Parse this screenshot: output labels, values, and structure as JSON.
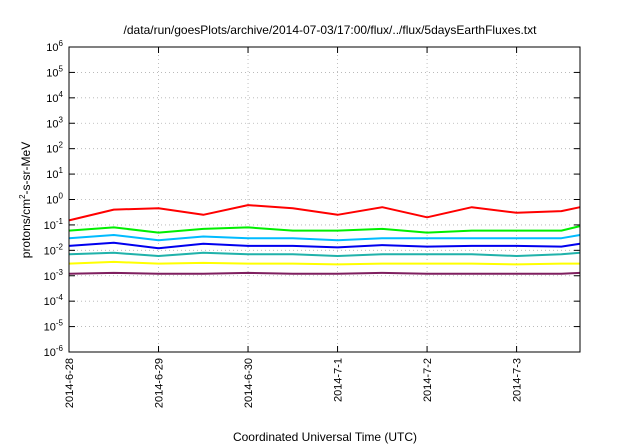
{
  "chart_data": {
    "type": "line",
    "title": "/data/run/goesPlots/archive/2014-07-03/17:00/flux/../flux/5daysEarthFluxes.txt",
    "xlabel": "Coordinated Universal Time (UTC)",
    "ylabel": {
      "base": "protons/cm",
      "sup": "2",
      "rest": "-s-sr-MeV"
    },
    "y_scale": "log",
    "ylim": [
      1e-06,
      1000000.0
    ],
    "y_ticks": [
      {
        "base": "10",
        "exp": "6"
      },
      {
        "base": "10",
        "exp": "5"
      },
      {
        "base": "10",
        "exp": "4"
      },
      {
        "base": "10",
        "exp": "3"
      },
      {
        "base": "10",
        "exp": "2"
      },
      {
        "base": "10",
        "exp": "1"
      },
      {
        "base": "10",
        "exp": "0"
      },
      {
        "base": "10",
        "exp": "-1"
      },
      {
        "base": "10",
        "exp": "-2"
      },
      {
        "base": "10",
        "exp": "-3"
      },
      {
        "base": "10",
        "exp": "-4"
      },
      {
        "base": "10",
        "exp": "-5"
      },
      {
        "base": "10",
        "exp": "-6"
      }
    ],
    "x_ticks": [
      "2014-6-28",
      "2014-6-29",
      "2014-6-30",
      "2014-7-1",
      "2014-7-2",
      "2014-7-3"
    ],
    "xlim": [
      "2014-06-28 00:00",
      "2014-07-03 17:00"
    ],
    "grid": true,
    "x": [
      "2014-06-28 00:00",
      "2014-06-28 12:00",
      "2014-06-29 00:00",
      "2014-06-29 12:00",
      "2014-06-30 00:00",
      "2014-06-30 12:00",
      "2014-07-01 00:00",
      "2014-07-01 12:00",
      "2014-07-02 00:00",
      "2014-07-02 12:00",
      "2014-07-03 00:00",
      "2014-07-03 12:00",
      "2014-07-03 17:00"
    ],
    "series": [
      {
        "color": "#ff0000",
        "values": [
          0.15,
          0.4,
          0.45,
          0.25,
          0.6,
          0.45,
          0.25,
          0.5,
          0.2,
          0.5,
          0.3,
          0.35,
          0.5
        ]
      },
      {
        "color": "#00ee00",
        "values": [
          0.06,
          0.08,
          0.05,
          0.07,
          0.08,
          0.06,
          0.06,
          0.07,
          0.05,
          0.06,
          0.06,
          0.06,
          0.09
        ]
      },
      {
        "color": "#00bbff",
        "values": [
          0.03,
          0.04,
          0.025,
          0.035,
          0.03,
          0.03,
          0.025,
          0.03,
          0.03,
          0.03,
          0.03,
          0.03,
          0.04
        ]
      },
      {
        "color": "#0000ee",
        "values": [
          0.015,
          0.02,
          0.012,
          0.018,
          0.015,
          0.015,
          0.013,
          0.016,
          0.014,
          0.015,
          0.015,
          0.014,
          0.018
        ]
      },
      {
        "color": "#20b2aa",
        "values": [
          0.007,
          0.008,
          0.006,
          0.008,
          0.007,
          0.007,
          0.006,
          0.007,
          0.007,
          0.007,
          0.006,
          0.007,
          0.008
        ]
      },
      {
        "color": "#ffff00",
        "values": [
          0.003,
          0.0035,
          0.003,
          0.0032,
          0.003,
          0.003,
          0.0028,
          0.003,
          0.003,
          0.003,
          0.0028,
          0.003,
          0.003
        ]
      },
      {
        "color": "#7f1f5f",
        "values": [
          0.0012,
          0.0013,
          0.0012,
          0.0012,
          0.0013,
          0.0012,
          0.0012,
          0.0013,
          0.0012,
          0.0012,
          0.0012,
          0.0012,
          0.0013
        ]
      }
    ]
  }
}
